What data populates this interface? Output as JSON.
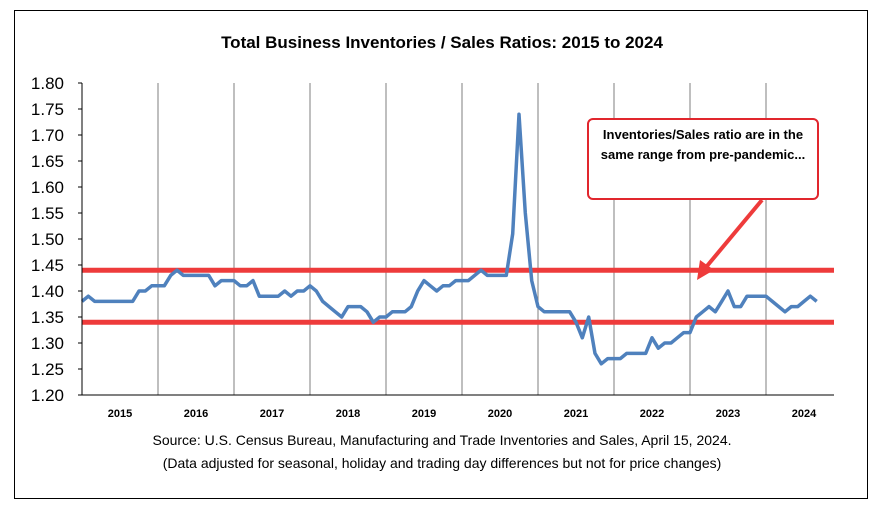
{
  "chart_data": {
    "type": "line",
    "title": "Total Business Inventories / Sales Ratios: 2015 to 2024",
    "xlabel": "",
    "ylabel": "",
    "ylim": [
      1.2,
      1.8
    ],
    "yticks": [
      "1.80",
      "1.75",
      "1.70",
      "1.65",
      "1.60",
      "1.55",
      "1.50",
      "1.45",
      "1.40",
      "1.35",
      "1.30",
      "1.25",
      "1.20"
    ],
    "xticks": [
      "2015",
      "2016",
      "2017",
      "2018",
      "2019",
      "2020",
      "2021",
      "2022",
      "2023",
      "2024"
    ],
    "grid": "vertical year lines",
    "reference_lines": [
      1.44,
      1.34
    ],
    "series": [
      {
        "color": "#4f81bd",
        "x_start": "2015-01",
        "values": [
          1.38,
          1.39,
          1.38,
          1.38,
          1.38,
          1.38,
          1.38,
          1.38,
          1.38,
          1.4,
          1.4,
          1.41,
          1.41,
          1.41,
          1.43,
          1.44,
          1.43,
          1.43,
          1.43,
          1.43,
          1.43,
          1.41,
          1.42,
          1.42,
          1.42,
          1.41,
          1.41,
          1.42,
          1.39,
          1.39,
          1.39,
          1.39,
          1.4,
          1.39,
          1.4,
          1.4,
          1.41,
          1.4,
          1.38,
          1.37,
          1.36,
          1.35,
          1.37,
          1.37,
          1.37,
          1.36,
          1.34,
          1.35,
          1.35,
          1.36,
          1.36,
          1.36,
          1.37,
          1.4,
          1.42,
          1.41,
          1.4,
          1.41,
          1.41,
          1.42,
          1.42,
          1.42,
          1.43,
          1.44,
          1.43,
          1.43,
          1.43,
          1.43,
          1.51,
          1.74,
          1.55,
          1.42,
          1.37,
          1.36,
          1.36,
          1.36,
          1.36,
          1.36,
          1.34,
          1.31,
          1.35,
          1.28,
          1.26,
          1.27,
          1.27,
          1.27,
          1.28,
          1.28,
          1.28,
          1.28,
          1.31,
          1.29,
          1.3,
          1.3,
          1.31,
          1.32,
          1.32,
          1.35,
          1.36,
          1.37,
          1.36,
          1.38,
          1.4,
          1.37,
          1.37,
          1.39,
          1.39,
          1.39,
          1.39,
          1.38,
          1.37,
          1.36,
          1.37,
          1.37,
          1.38,
          1.39,
          1.38
        ]
      }
    ]
  },
  "callout_text": "Inventories/Sales ratio are in the same range from pre-pandemic...",
  "colors": {
    "line": "#4f81bd",
    "reference": "#ee3b3b",
    "grid": "#7f7f7f"
  },
  "source_line1": "Source: U.S. Census Bureau, Manufacturing and Trade Inventories and Sales, April 15, 2024.",
  "source_line2": "(Data adjusted for seasonal, holiday and trading day differences but not for price changes)"
}
